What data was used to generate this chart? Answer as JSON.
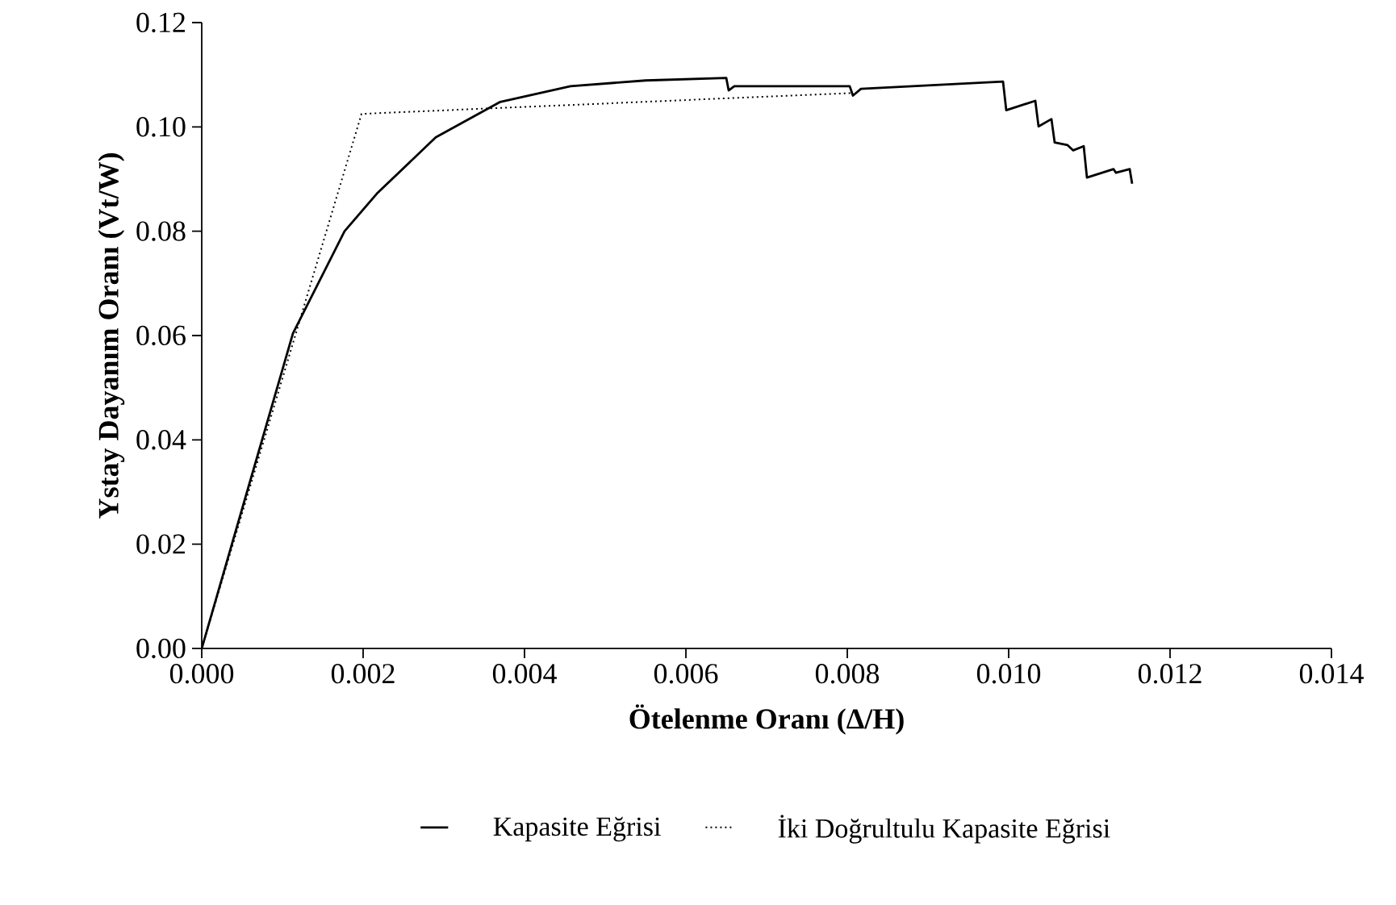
{
  "chart_data": {
    "type": "line",
    "xlabel": "Ötelenme Oranı (Δ/H)",
    "ylabel": "Ystay Dayanım Oranı (Vt/W)",
    "xlim": [
      0,
      0.014
    ],
    "ylim": [
      0,
      0.12
    ],
    "xticks": [
      {
        "value": 0,
        "label": "0.000"
      },
      {
        "value": 0.002,
        "label": "0.002"
      },
      {
        "value": 0.004,
        "label": "0.004"
      },
      {
        "value": 0.006,
        "label": "0.006"
      },
      {
        "value": 0.008,
        "label": "0.008"
      },
      {
        "value": 0.01,
        "label": "0.010"
      },
      {
        "value": 0.012,
        "label": "0.012"
      },
      {
        "value": 0.014,
        "label": "0.014"
      }
    ],
    "yticks": [
      {
        "value": 0,
        "label": "0.00"
      },
      {
        "value": 0.02,
        "label": "0.02"
      },
      {
        "value": 0.04,
        "label": "0.04"
      },
      {
        "value": 0.06,
        "label": "0.06"
      },
      {
        "value": 0.08,
        "label": "0.08"
      },
      {
        "value": 0.1,
        "label": "0.10"
      },
      {
        "value": 0.12,
        "label": "0.12"
      }
    ],
    "grid": false,
    "legend": "bottom",
    "marker": "none",
    "series": [
      {
        "name": "Kapasite Eğrisi",
        "color": "#000000",
        "line_style": "solid",
        "x": [
          0,
          0.00057,
          0.00113,
          0.00177,
          0.00217,
          0.0029,
          0.0037,
          0.00457,
          0.0055,
          0.0065,
          0.00653,
          0.0066,
          0.00803,
          0.00807,
          0.00817,
          0.00993,
          0.00997,
          0.01033,
          0.01037,
          0.01053,
          0.01057,
          0.01073,
          0.0108,
          0.01093,
          0.01097,
          0.0113,
          0.01133,
          0.0115,
          0.01153
        ],
        "values": [
          0,
          0.0305,
          0.0604,
          0.08,
          0.0872,
          0.098,
          0.1048,
          0.1078,
          0.1089,
          0.1094,
          0.107,
          0.1078,
          0.1078,
          0.106,
          0.1073,
          0.1087,
          0.1032,
          0.105,
          0.1001,
          0.1015,
          0.097,
          0.0965,
          0.0955,
          0.0963,
          0.0903,
          0.0919,
          0.0912,
          0.0919,
          0.0891
        ]
      },
      {
        "name": "İki Doğrultulu Kapasite Eğrisi",
        "color": "#000000",
        "line_style": "dotted",
        "x": [
          0,
          0.00198,
          0.00806
        ],
        "values": [
          0,
          0.1025,
          0.1065
        ]
      }
    ]
  }
}
